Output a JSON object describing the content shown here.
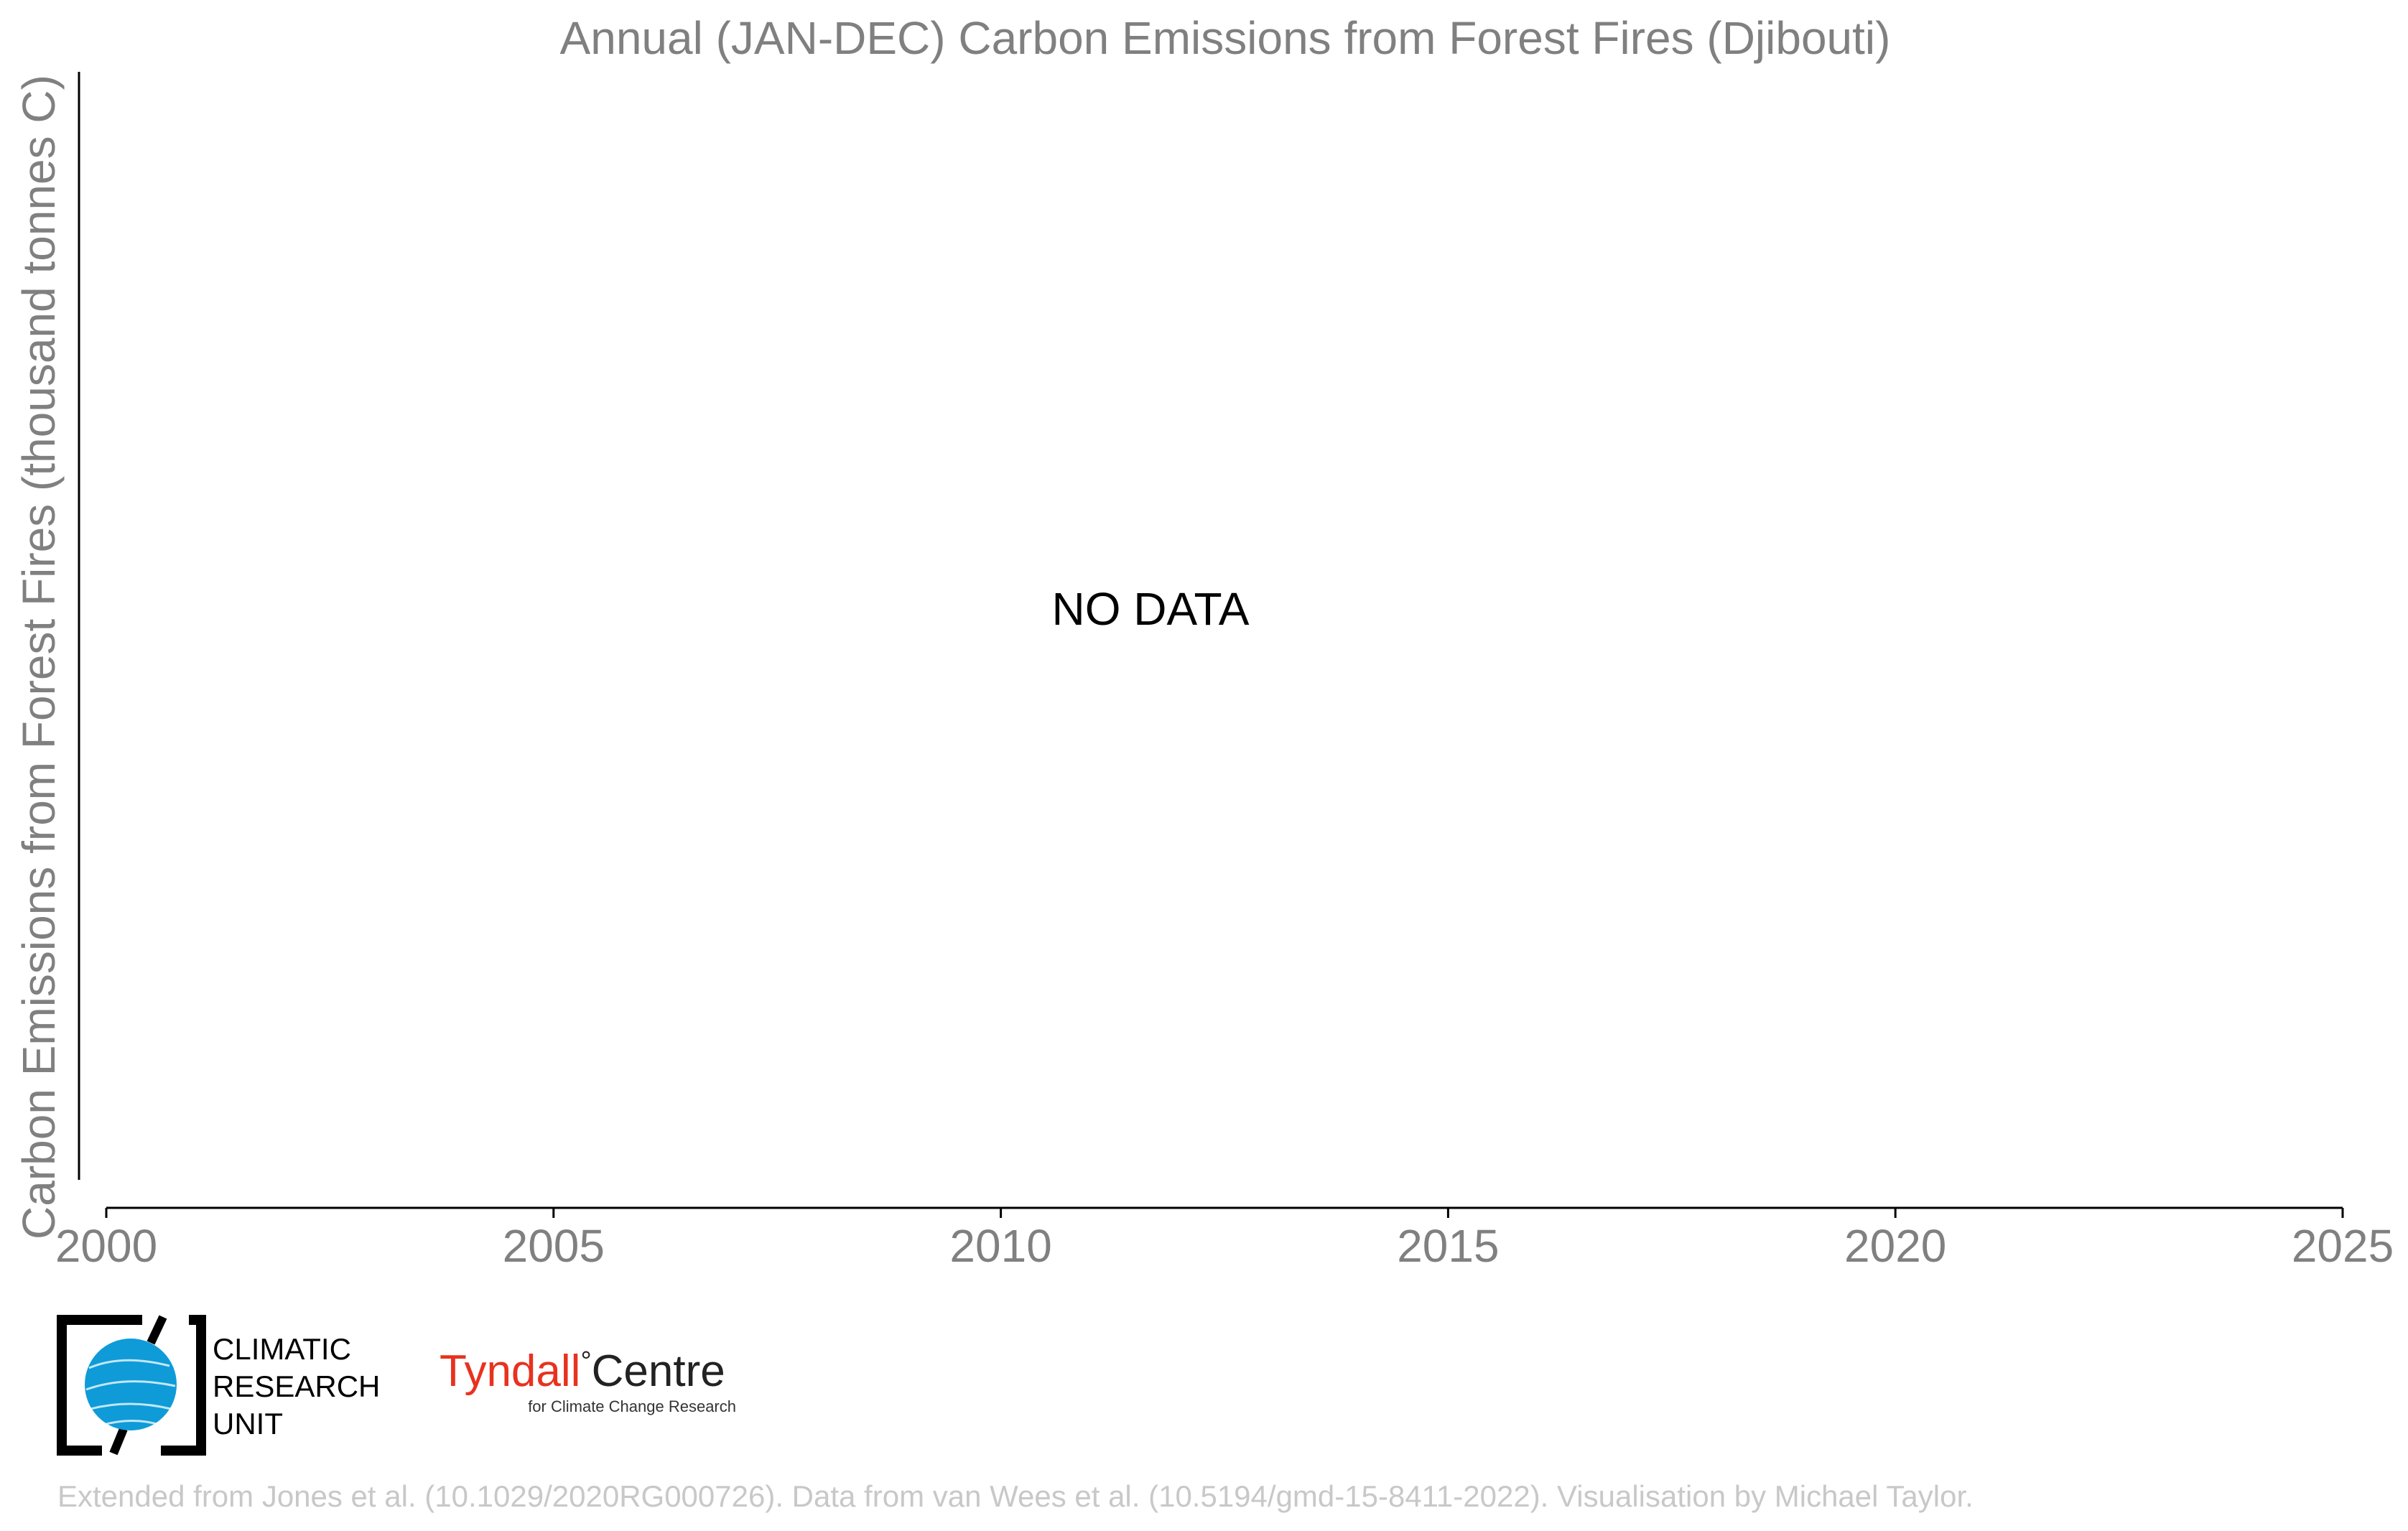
{
  "chart_data": {
    "type": "line",
    "title": "Annual (JAN-DEC) Carbon Emissions from Forest Fires (Djibouti)",
    "xlabel": "",
    "ylabel": "Carbon Emissions from Forest Fires (thousand tonnes C)",
    "xlim": [
      2000,
      2025
    ],
    "x_ticks": [
      "2000",
      "2005",
      "2010",
      "2015",
      "2020",
      "2025"
    ],
    "series": [],
    "annotation": "NO DATA",
    "grid": false
  },
  "logos": {
    "cru": {
      "line1": "CLIMATIC",
      "line2": "RESEARCH",
      "line3": "UNIT"
    },
    "tyndall": {
      "word1": "Tyndall",
      "degree": "°",
      "word2": "Centre",
      "sub": "for Climate Change Research",
      "color_red": "#e8321e",
      "color_dark": "#222222"
    },
    "cru_globe_color": "#0e9bd8"
  },
  "credit": "Extended from Jones et al. (10.1029/2020RG000726). Data from van Wees et al. (10.5194/gmd-15-8411-2022). Visualisation by Michael Taylor."
}
